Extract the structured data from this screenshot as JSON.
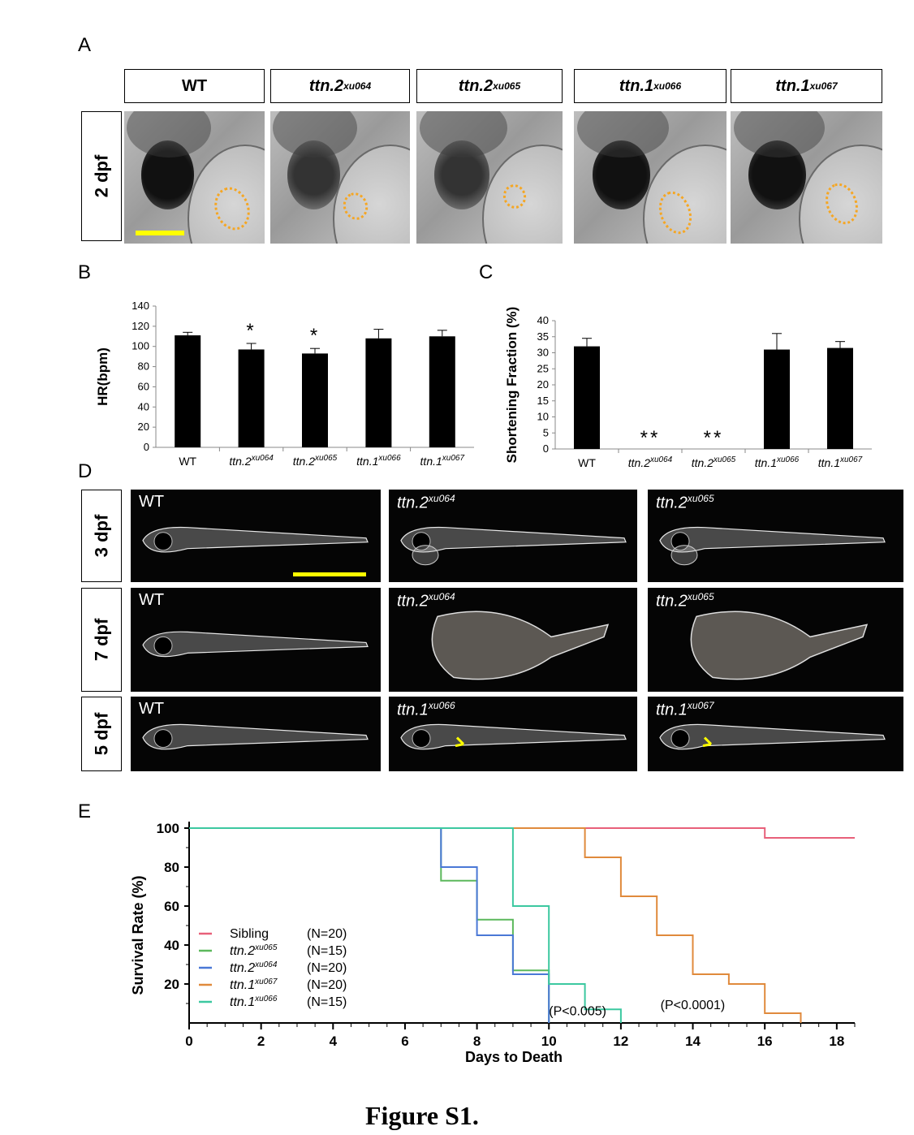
{
  "panel_labels": {
    "a": "A",
    "b": "B",
    "c": "C",
    "d": "D",
    "e": "E"
  },
  "panel_a": {
    "headers": [
      {
        "base": "WT",
        "sup": ""
      },
      {
        "base": "ttn.2",
        "sup": "xu064"
      },
      {
        "base": "ttn.2",
        "sup": "xu065"
      },
      {
        "base": "ttn.1",
        "sup": "xu066"
      },
      {
        "base": "ttn.1",
        "sup": "xu067"
      }
    ],
    "row_label": "2 dpf",
    "scale_bar_color": "#ffff00",
    "outline_color": "#f5a623"
  },
  "panel_d": {
    "rows": [
      {
        "label": "3 dpf",
        "cells": [
          {
            "base": "WT",
            "sup": ""
          },
          {
            "base": "ttn.2",
            "sup": "xu064"
          },
          {
            "base": "ttn.2",
            "sup": "xu065"
          }
        ]
      },
      {
        "label": "7 dpf",
        "cells": [
          {
            "base": "WT",
            "sup": ""
          },
          {
            "base": "ttn.2",
            "sup": "xu064"
          },
          {
            "base": "ttn.2",
            "sup": "xu065"
          }
        ]
      },
      {
        "label": "5 dpf",
        "cells": [
          {
            "base": "WT",
            "sup": ""
          },
          {
            "base": "ttn.1",
            "sup": "xu066"
          },
          {
            "base": "ttn.1",
            "sup": "xu067"
          }
        ]
      }
    ]
  },
  "figure_caption": "Figure S1.",
  "chart_data": [
    {
      "panel": "B",
      "type": "bar",
      "ylabel": "HR(bpm)",
      "ylim": [
        0,
        140
      ],
      "yticks": [
        0,
        20,
        40,
        60,
        80,
        100,
        120,
        140
      ],
      "categories": [
        {
          "base": "WT",
          "sup": ""
        },
        {
          "base": "ttn.2",
          "sup": "xu064"
        },
        {
          "base": "ttn.2",
          "sup": "xu065"
        },
        {
          "base": "ttn.1",
          "sup": "xu066"
        },
        {
          "base": "ttn.1",
          "sup": "xu067"
        }
      ],
      "values": [
        111,
        97,
        93,
        108,
        110
      ],
      "errors": [
        3,
        6,
        5,
        9,
        6
      ],
      "significance": [
        "",
        "*",
        "*",
        "",
        ""
      ],
      "bar_color": "#000000"
    },
    {
      "panel": "C",
      "type": "bar",
      "ylabel": "Shortening Fraction (%)",
      "ylim": [
        0,
        40
      ],
      "yticks": [
        0,
        5,
        10,
        15,
        20,
        25,
        30,
        35,
        40
      ],
      "categories": [
        {
          "base": "WT",
          "sup": ""
        },
        {
          "base": "ttn.2",
          "sup": "xu064"
        },
        {
          "base": "ttn.2",
          "sup": "xu065"
        },
        {
          "base": "ttn.1",
          "sup": "xu066"
        },
        {
          "base": "ttn.1",
          "sup": "xu067"
        }
      ],
      "values": [
        32,
        0,
        0,
        31,
        31.5
      ],
      "errors": [
        2.5,
        0,
        0,
        5,
        2
      ],
      "significance": [
        "",
        "**",
        "**",
        "",
        ""
      ],
      "bar_color": "#000000"
    },
    {
      "panel": "E",
      "type": "line",
      "subtype": "step-survival",
      "xlabel": "Days to Death",
      "ylabel": "Survival Rate (%)",
      "xlim": [
        0,
        18.5
      ],
      "ylim": [
        0,
        100
      ],
      "xticks": [
        0,
        2,
        4,
        6,
        8,
        10,
        12,
        14,
        16,
        18
      ],
      "yticks": [
        20,
        40,
        60,
        80,
        100
      ],
      "series": [
        {
          "name": "Sibling",
          "sup": "",
          "n": "(N=20)",
          "color": "#e8607a",
          "points": [
            [
              0,
              100
            ],
            [
              16,
              100
            ],
            [
              16,
              95
            ],
            [
              18.5,
              95
            ]
          ]
        },
        {
          "name": "ttn.2",
          "sup": "xu065",
          "n": "(N=15)",
          "color": "#5cb85c",
          "points": [
            [
              0,
              100
            ],
            [
              7,
              100
            ],
            [
              7,
              73
            ],
            [
              8,
              73
            ],
            [
              8,
              53
            ],
            [
              9,
              53
            ],
            [
              9,
              27
            ],
            [
              10,
              27
            ],
            [
              10,
              0
            ]
          ]
        },
        {
          "name": "ttn.2",
          "sup": "xu064",
          "n": "(N=20)",
          "color": "#4a78d6",
          "points": [
            [
              0,
              100
            ],
            [
              7,
              100
            ],
            [
              7,
              80
            ],
            [
              8,
              80
            ],
            [
              8,
              45
            ],
            [
              9,
              45
            ],
            [
              9,
              25
            ],
            [
              10,
              25
            ],
            [
              10,
              0
            ]
          ]
        },
        {
          "name": "ttn.1",
          "sup": "xu067",
          "n": "(N=20)",
          "color": "#e08a3c",
          "points": [
            [
              0,
              100
            ],
            [
              11,
              100
            ],
            [
              11,
              85
            ],
            [
              12,
              85
            ],
            [
              12,
              65
            ],
            [
              13,
              65
            ],
            [
              13,
              45
            ],
            [
              14,
              45
            ],
            [
              14,
              25
            ],
            [
              15,
              25
            ],
            [
              15,
              20
            ],
            [
              16,
              20
            ],
            [
              16,
              5
            ],
            [
              17,
              5
            ],
            [
              17,
              0
            ]
          ]
        },
        {
          "name": "ttn.1",
          "sup": "xu066",
          "n": "(N=15)",
          "color": "#3cc8a0",
          "points": [
            [
              0,
              100
            ],
            [
              9,
              100
            ],
            [
              9,
              60
            ],
            [
              10,
              60
            ],
            [
              10,
              20
            ],
            [
              11,
              20
            ],
            [
              11,
              7
            ],
            [
              12,
              7
            ],
            [
              12,
              0
            ]
          ]
        }
      ],
      "annotations": [
        {
          "text": "(P<0.005)",
          "x": 10.0,
          "y": 4
        },
        {
          "text": "(P<0.0001)",
          "x": 13.1,
          "y": 7
        }
      ]
    }
  ]
}
